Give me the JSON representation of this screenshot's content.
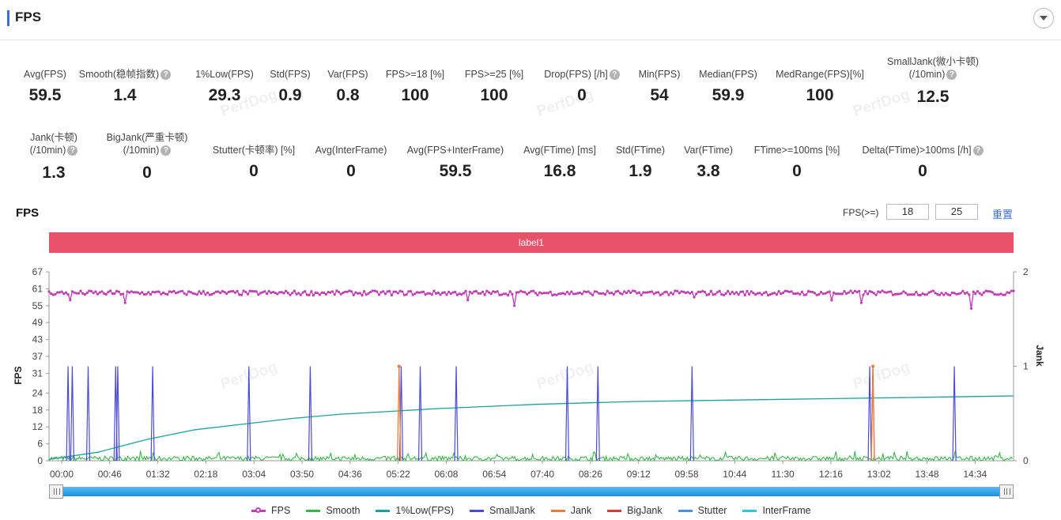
{
  "header": {
    "title": "FPS"
  },
  "metrics_row1": [
    {
      "label": "Avg(FPS)",
      "value": "59.5",
      "help": false
    },
    {
      "label": "Smooth(稳帧指数)",
      "value": "1.4",
      "help": true
    },
    {
      "label": "1%Low(FPS)",
      "value": "29.3",
      "help": false
    },
    {
      "label": "Std(FPS)",
      "value": "0.9",
      "help": false
    },
    {
      "label": "Var(FPS)",
      "value": "0.8",
      "help": false
    },
    {
      "label": "FPS>=18 [%]",
      "value": "100",
      "help": false
    },
    {
      "label": "FPS>=25 [%]",
      "value": "100",
      "help": false
    },
    {
      "label": "Drop(FPS) [/h]",
      "value": "0",
      "help": true
    },
    {
      "label": "Min(FPS)",
      "value": "54",
      "help": false
    },
    {
      "label": "Median(FPS)",
      "value": "59.9",
      "help": false
    },
    {
      "label": "MedRange(FPS)[%]",
      "value": "100",
      "help": false
    },
    {
      "label": "SmallJank(微小卡顿)",
      "label2": "(/10min)",
      "value": "12.5",
      "help": true
    }
  ],
  "metrics_row2": [
    {
      "label": "Jank(卡顿)",
      "label2": "(/10min)",
      "value": "1.3",
      "help": true
    },
    {
      "label": "BigJank(严重卡顿)",
      "label2": "(/10min)",
      "value": "0",
      "help": true
    },
    {
      "label": "Stutter(卡顿率) [%]",
      "value": "0",
      "help": false
    },
    {
      "label": "Avg(InterFrame)",
      "value": "0",
      "help": false
    },
    {
      "label": "Avg(FPS+InterFrame)",
      "value": "59.5",
      "help": false
    },
    {
      "label": "Avg(FTime) [ms]",
      "value": "16.8",
      "help": false
    },
    {
      "label": "Std(FTime)",
      "value": "1.9",
      "help": false
    },
    {
      "label": "Var(FTime)",
      "value": "3.8",
      "help": false
    },
    {
      "label": "FTime>=100ms [%]",
      "value": "0",
      "help": false
    },
    {
      "label": "Delta(FTime)>100ms [/h]",
      "value": "0",
      "help": true
    }
  ],
  "chart_controls": {
    "title": "FPS",
    "fps_ge_label": "FPS(>=)",
    "threshold1": "18",
    "threshold2": "25",
    "reset_label": "重置"
  },
  "label_band": "label1",
  "watermark": "PerfDog",
  "colors": {
    "fps": "#c040b4",
    "smooth": "#3cb44b",
    "low1": "#1aa39a",
    "smalljank": "#4b4bd6",
    "jank": "#f07a3a",
    "bigjank": "#d63c3c",
    "stutter": "#4a8fe0",
    "interframe": "#2cc7d6",
    "label_band": "#e9536a",
    "accent": "#3b6fd6"
  },
  "legend": [
    {
      "name": "FPS",
      "color": "#c040b4",
      "dot": true
    },
    {
      "name": "Smooth",
      "color": "#3cb44b"
    },
    {
      "name": "1%Low(FPS)",
      "color": "#1aa39a"
    },
    {
      "name": "SmallJank",
      "color": "#4b4bd6"
    },
    {
      "name": "Jank",
      "color": "#f07a3a"
    },
    {
      "name": "BigJank",
      "color": "#d63c3c"
    },
    {
      "name": "Stutter",
      "color": "#4a8fe0"
    },
    {
      "name": "InterFrame",
      "color": "#2cc7d6"
    }
  ],
  "chart_data": {
    "type": "line",
    "ylabel": "FPS",
    "y2label": "Jank",
    "yticks": [
      0,
      6,
      12,
      18,
      24,
      31,
      37,
      43,
      49,
      55,
      61,
      67
    ],
    "ylim": [
      0,
      67
    ],
    "y2ticks": [
      0,
      1,
      2
    ],
    "y2lim": [
      0,
      2
    ],
    "xticks": [
      "00:00",
      "00:46",
      "01:32",
      "02:18",
      "03:04",
      "03:50",
      "04:36",
      "05:22",
      "06:08",
      "06:54",
      "07:40",
      "08:26",
      "09:12",
      "09:58",
      "10:44",
      "11:30",
      "12:16",
      "13:02",
      "13:48",
      "14:34"
    ],
    "x_range_seconds": [
      0,
      912
    ],
    "fps_baseline": 59.5,
    "fps_min": 54,
    "fps_dips_seconds": [
      [
        13,
        56
      ],
      [
        20,
        57
      ],
      [
        47,
        58
      ],
      [
        72,
        56
      ],
      [
        147,
        57
      ],
      [
        315,
        58
      ],
      [
        396,
        57
      ],
      [
        440,
        55
      ],
      [
        610,
        58
      ],
      [
        740,
        57
      ],
      [
        768,
        56
      ],
      [
        795,
        58
      ],
      [
        872,
        54
      ],
      [
        885,
        57
      ]
    ],
    "low1_curve": [
      [
        0,
        0.5
      ],
      [
        46,
        3
      ],
      [
        92,
        7.5
      ],
      [
        138,
        11
      ],
      [
        184,
        13
      ],
      [
        230,
        15
      ],
      [
        276,
        16.5
      ],
      [
        322,
        17.5
      ],
      [
        368,
        18.5
      ],
      [
        460,
        20
      ],
      [
        552,
        21
      ],
      [
        644,
        21.5
      ],
      [
        736,
        22
      ],
      [
        828,
        22.5
      ],
      [
        912,
        23
      ]
    ],
    "smalljank_seconds": [
      18,
      22,
      37,
      63,
      65,
      98,
      189,
      247,
      333,
      351,
      385,
      490,
      519,
      608,
      776,
      779,
      856
    ],
    "jank_seconds": [
      331,
      779
    ],
    "smalljank_value": 1,
    "jank_value": 1
  }
}
